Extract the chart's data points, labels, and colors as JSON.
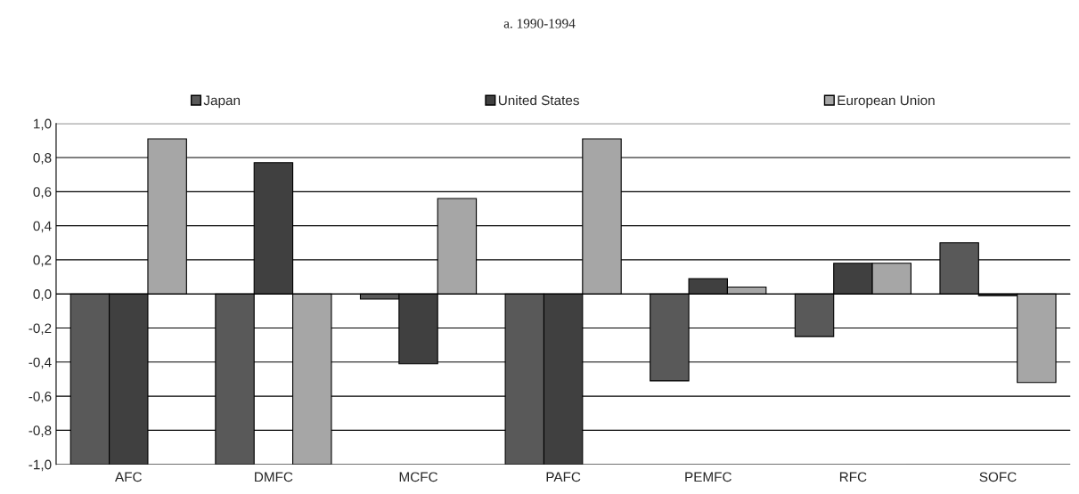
{
  "chart_data": {
    "type": "bar",
    "title": "a. 1990-1994",
    "categories": [
      "AFC",
      "DMFC",
      "MCFC",
      "PAFC",
      "PEMFC",
      "RFC",
      "SOFC"
    ],
    "series": [
      {
        "name": "Japan",
        "color": "#595959",
        "values": [
          -1.0,
          -1.0,
          -0.03,
          -1.0,
          -0.51,
          -0.25,
          0.3
        ]
      },
      {
        "name": "United States",
        "color": "#404040",
        "values": [
          -1.0,
          0.77,
          -0.41,
          -1.0,
          0.09,
          0.18,
          -0.01
        ]
      },
      {
        "name": "European Union",
        "color": "#a6a6a6",
        "values": [
          0.91,
          -1.0,
          0.56,
          0.91,
          0.04,
          0.18,
          -0.52
        ]
      }
    ],
    "ylim": [
      -1.0,
      1.0
    ],
    "yticks": [
      {
        "value": -1.0,
        "label": "-1,0"
      },
      {
        "value": -0.8,
        "label": "-0,8"
      },
      {
        "value": -0.6,
        "label": "-0,6"
      },
      {
        "value": -0.4,
        "label": "-0,4"
      },
      {
        "value": -0.2,
        "label": "-0,2"
      },
      {
        "value": 0.0,
        "label": "0,0"
      },
      {
        "value": 0.2,
        "label": "0,2"
      },
      {
        "value": 0.4,
        "label": "0,4"
      },
      {
        "value": 0.6,
        "label": "0,6"
      },
      {
        "value": 0.8,
        "label": "0,8"
      },
      {
        "value": 1.0,
        "label": "1,0"
      }
    ],
    "grid": "y",
    "legend": "top"
  }
}
